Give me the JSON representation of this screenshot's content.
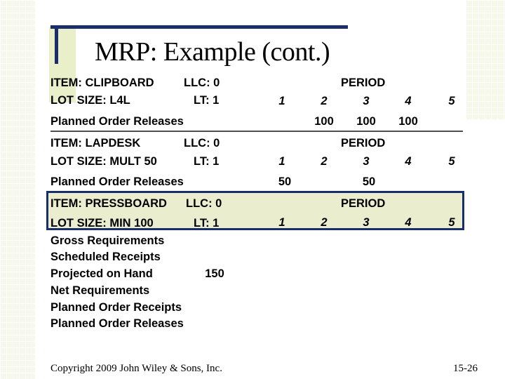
{
  "title": "MRP: Example (cont.)",
  "sections": [
    {
      "item": "ITEM: CLIPBOARD",
      "llc": "LLC: 0",
      "lot": "LOT SIZE: L4L",
      "lt": "LT: 1",
      "period_label": "PERIOD",
      "periods": [
        "1",
        "2",
        "3",
        "4",
        "5"
      ],
      "rows": [
        {
          "label": "Planned Order Releases",
          "values": [
            "",
            "100",
            "100",
            "100",
            ""
          ]
        }
      ]
    },
    {
      "item": "ITEM: LAPDESK",
      "llc": "LLC: 0",
      "lot": "LOT SIZE: MULT 50",
      "lt": "LT: 1",
      "period_label": "PERIOD",
      "periods": [
        "1",
        "2",
        "3",
        "4",
        "5"
      ],
      "rows": [
        {
          "label": "Planned Order Releases",
          "values": [
            "50",
            "",
            "50",
            "",
            ""
          ]
        }
      ]
    },
    {
      "item": "ITEM: PRESSBOARD",
      "llc": "LLC: 0",
      "lot": "LOT SIZE: MIN 100",
      "lt": "LT: 1",
      "period_label": "PERIOD",
      "periods": [
        "1",
        "2",
        "3",
        "4",
        "5"
      ],
      "rows": [
        {
          "label": "Gross Requirements"
        },
        {
          "label": "Scheduled Receipts"
        },
        {
          "label": "Projected on Hand",
          "initial": "150"
        },
        {
          "label": "Net Requirements"
        },
        {
          "label": "Planned Order Receipts"
        },
        {
          "label": "Planned Order Releases"
        }
      ]
    }
  ],
  "footer": {
    "copyright": "Copyright 2009 John Wiley & Sons, Inc.",
    "page": "15-26"
  }
}
